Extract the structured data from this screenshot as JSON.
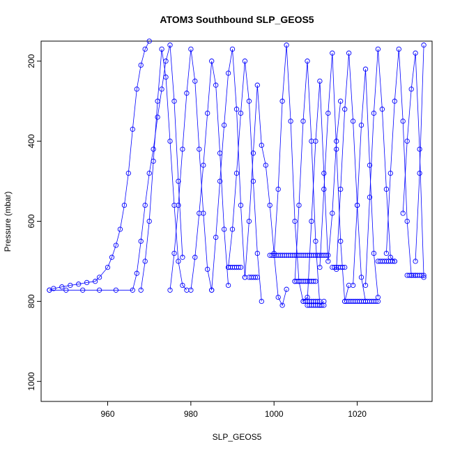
{
  "chart_data": {
    "type": "line",
    "title": "ATOM3 Southbound SLP_GEOS5",
    "xlabel": "SLP_GEOS5",
    "ylabel": "Pressure (mbar)",
    "xlim": [
      944,
      1038
    ],
    "ylim": [
      1050,
      150
    ],
    "y_inverted": true,
    "xticks": [
      960,
      980,
      1000,
      1020
    ],
    "yticks": [
      200,
      400,
      600,
      800,
      1000
    ],
    "grid": false,
    "legend": "none",
    "marker": "open-circle",
    "series_color": "#0000ff",
    "series": [
      {
        "x": [
          946,
          947,
          949,
          951,
          953,
          955,
          957,
          958,
          960,
          961,
          962,
          963,
          964,
          965,
          966,
          967,
          968,
          969,
          970
        ],
        "y": [
          772,
          768,
          764,
          760,
          757,
          753,
          750,
          740,
          715,
          690,
          660,
          620,
          560,
          480,
          370,
          270,
          210,
          170,
          150
        ]
      },
      {
        "x": [
          946,
          950,
          954,
          958,
          962,
          966,
          967,
          968,
          969,
          970,
          971,
          972,
          973,
          974,
          975,
          976,
          977,
          978
        ],
        "y": [
          772,
          772,
          772,
          772,
          772,
          772,
          730,
          650,
          560,
          480,
          420,
          340,
          270,
          200,
          160,
          300,
          500,
          690
        ]
      },
      {
        "x": [
          968,
          969,
          970,
          971,
          972,
          973,
          974,
          975,
          976,
          977,
          978,
          979
        ],
        "y": [
          772,
          700,
          600,
          450,
          300,
          170,
          240,
          400,
          560,
          700,
          760,
          772
        ]
      },
      {
        "x": [
          975,
          976,
          977,
          978,
          979,
          980,
          981,
          982,
          983,
          984,
          985
        ],
        "y": [
          772,
          680,
          560,
          420,
          280,
          170,
          250,
          420,
          580,
          720,
          772
        ]
      },
      {
        "x": [
          980,
          981,
          982,
          983,
          984,
          985,
          986,
          987,
          988,
          989
        ],
        "y": [
          772,
          690,
          580,
          460,
          330,
          200,
          260,
          430,
          620,
          760
        ]
      },
      {
        "x": [
          985,
          986,
          987,
          988,
          989,
          990,
          991,
          992,
          993
        ],
        "y": [
          772,
          640,
          500,
          360,
          230,
          170,
          320,
          560,
          740
        ]
      },
      {
        "x": [
          989,
          990,
          991,
          992,
          993,
          994,
          995,
          996,
          997
        ],
        "y": [
          715,
          620,
          480,
          330,
          200,
          300,
          500,
          680,
          800
        ]
      },
      {
        "x": [
          993,
          994,
          995,
          996,
          997,
          998,
          999,
          1000,
          1001,
          1002,
          1003
        ],
        "y": [
          740,
          600,
          430,
          260,
          410,
          460,
          560,
          680,
          790,
          810,
          770
        ]
      },
      {
        "x": [
          1000,
          1001,
          1002,
          1003,
          1004,
          1005,
          1006,
          1007,
          1008
        ],
        "y": [
          685,
          520,
          300,
          160,
          350,
          600,
          750,
          800,
          790
        ]
      },
      {
        "x": [
          1005,
          1006,
          1007,
          1008,
          1009,
          1010,
          1011,
          1012
        ],
        "y": [
          750,
          560,
          350,
          200,
          400,
          650,
          810,
          800
        ]
      },
      {
        "x": [
          1008,
          1009,
          1010,
          1011,
          1012,
          1013,
          1014,
          1015,
          1016
        ],
        "y": [
          800,
          600,
          400,
          250,
          480,
          700,
          580,
          400,
          300
        ]
      },
      {
        "x": [
          1011,
          1012,
          1013,
          1014,
          1015,
          1016,
          1017,
          1018
        ],
        "y": [
          715,
          520,
          330,
          180,
          420,
          650,
          800,
          760
        ]
      },
      {
        "x": [
          1015,
          1016,
          1017,
          1018,
          1019,
          1020,
          1021,
          1022
        ],
        "y": [
          720,
          520,
          320,
          180,
          350,
          560,
          740,
          800
        ]
      },
      {
        "x": [
          1019,
          1020,
          1021,
          1022,
          1023,
          1024,
          1025
        ],
        "y": [
          760,
          560,
          360,
          220,
          460,
          680,
          790
        ]
      },
      {
        "x": [
          1022,
          1023,
          1024,
          1025,
          1026,
          1027,
          1028,
          1029
        ],
        "y": [
          760,
          540,
          330,
          170,
          320,
          520,
          690,
          700
        ]
      },
      {
        "x": [
          1027,
          1028,
          1029,
          1030,
          1031,
          1032,
          1033,
          1034
        ],
        "y": [
          680,
          480,
          300,
          170,
          350,
          600,
          735,
          735
        ]
      },
      {
        "x": [
          1031,
          1032,
          1033,
          1034,
          1035,
          1036
        ],
        "y": [
          580,
          400,
          270,
          180,
          420,
          740
        ]
      },
      {
        "x": [
          1034,
          1035,
          1036
        ],
        "y": [
          700,
          480,
          160
        ]
      }
    ],
    "clusters": [
      {
        "x_range": [
          989,
          992
        ],
        "y": 715
      },
      {
        "x_range": [
          994,
          996
        ],
        "y": 740
      },
      {
        "x_range": [
          999,
          1013
        ],
        "y": 685
      },
      {
        "x_range": [
          1005,
          1010
        ],
        "y": 750
      },
      {
        "x_range": [
          1007,
          1011
        ],
        "y": 800
      },
      {
        "x_range": [
          1008,
          1012
        ],
        "y": 810
      },
      {
        "x_range": [
          1014,
          1017
        ],
        "y": 715
      },
      {
        "x_range": [
          1017,
          1025
        ],
        "y": 800
      },
      {
        "x_range": [
          1025,
          1029
        ],
        "y": 700
      },
      {
        "x_range": [
          1032,
          1036
        ],
        "y": 735
      }
    ]
  }
}
